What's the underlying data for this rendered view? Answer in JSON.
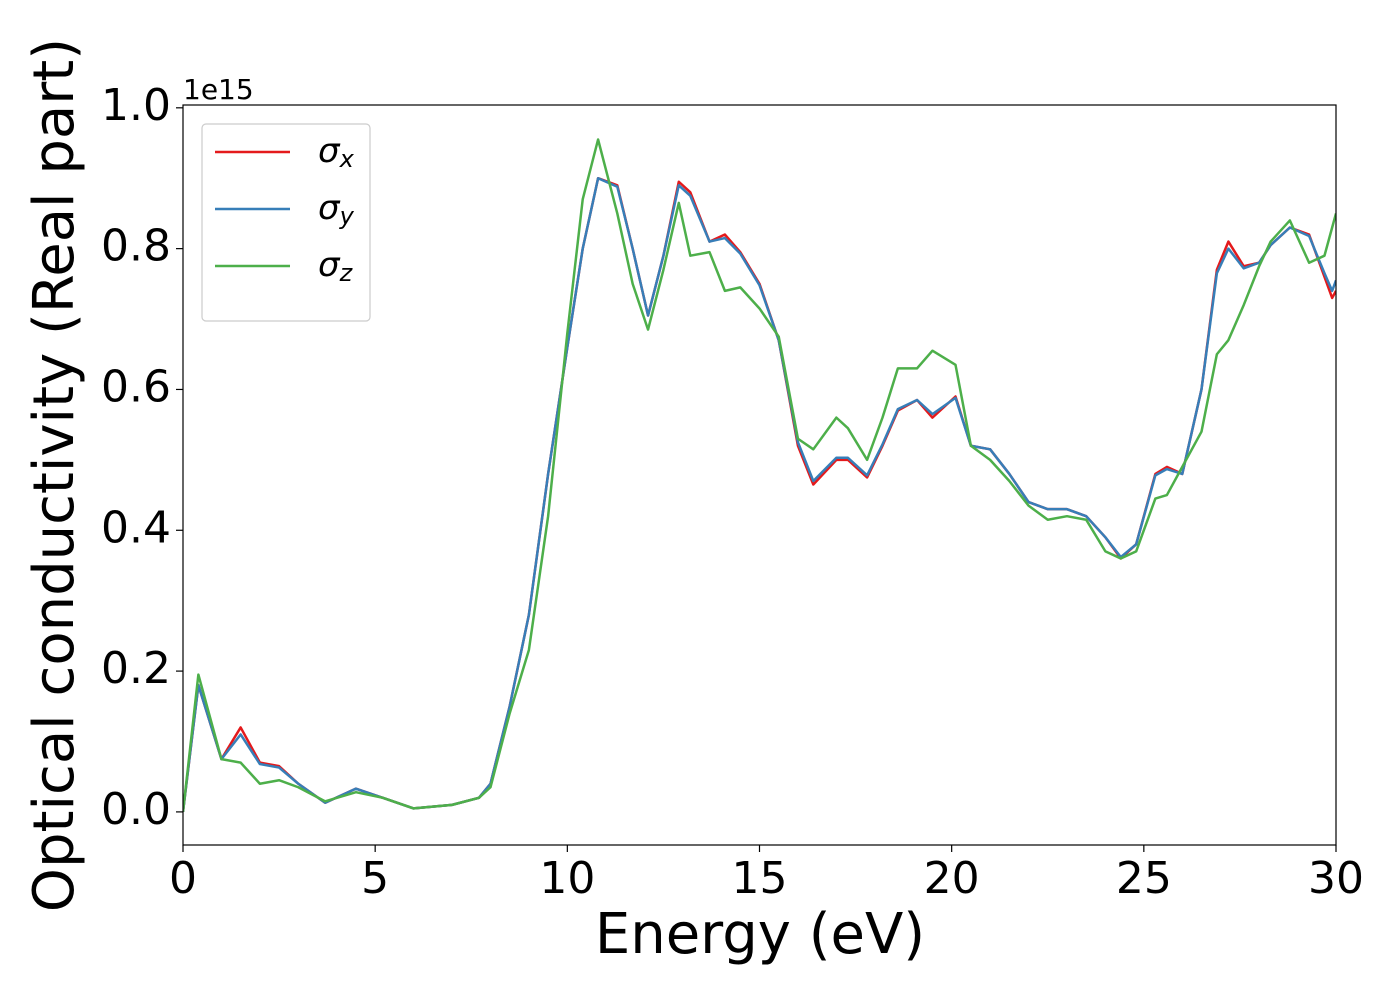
{
  "chart_data": {
    "type": "line",
    "xlabel": "Energy (eV)",
    "ylabel": "Optical conductivity (Real part)",
    "y_offset_label": "1e15",
    "x": [
      0,
      0.4,
      1.0,
      1.5,
      2.0,
      2.5,
      3.0,
      3.7,
      4.5,
      5.2,
      6.0,
      7.0,
      7.7,
      8.0,
      8.5,
      9.0,
      9.5,
      10.0,
      10.4,
      10.8,
      11.3,
      11.7,
      12.1,
      12.5,
      12.9,
      13.2,
      13.7,
      14.1,
      14.5,
      15.0,
      15.5,
      16.0,
      16.4,
      17.0,
      17.3,
      17.8,
      18.2,
      18.6,
      19.1,
      19.5,
      20.1,
      20.5,
      21.0,
      21.5,
      22.0,
      22.5,
      23.0,
      23.5,
      24.0,
      24.4,
      24.8,
      25.3,
      25.6,
      26.0,
      26.5,
      26.9,
      27.2,
      27.6,
      28.0,
      28.3,
      28.8,
      29.3,
      29.7,
      29.9,
      30
    ],
    "series": [
      {
        "name": "σx",
        "color": "#e41a1c",
        "values": [
          0,
          0.18,
          0.075,
          0.12,
          0.07,
          0.065,
          0.04,
          0.013,
          0.033,
          0.02,
          0.005,
          0.01,
          0.02,
          0.04,
          0.15,
          0.28,
          0.48,
          0.66,
          0.8,
          0.9,
          0.89,
          0.8,
          0.705,
          0.79,
          0.895,
          0.88,
          0.81,
          0.82,
          0.795,
          0.75,
          0.67,
          0.52,
          0.465,
          0.5,
          0.5,
          0.475,
          0.52,
          0.57,
          0.585,
          0.56,
          0.59,
          0.52,
          0.515,
          0.48,
          0.44,
          0.43,
          0.43,
          0.42,
          0.39,
          0.36,
          0.38,
          0.48,
          0.49,
          0.48,
          0.6,
          0.77,
          0.81,
          0.775,
          0.78,
          0.805,
          0.83,
          0.82,
          0.76,
          0.73,
          0.74
        ]
      },
      {
        "name": "σy",
        "color": "#377eb8",
        "values": [
          0,
          0.18,
          0.075,
          0.11,
          0.068,
          0.063,
          0.04,
          0.013,
          0.033,
          0.02,
          0.005,
          0.01,
          0.02,
          0.04,
          0.15,
          0.28,
          0.48,
          0.66,
          0.8,
          0.9,
          0.888,
          0.8,
          0.705,
          0.79,
          0.89,
          0.875,
          0.81,
          0.815,
          0.793,
          0.748,
          0.67,
          0.525,
          0.47,
          0.503,
          0.503,
          0.478,
          0.522,
          0.572,
          0.585,
          0.565,
          0.588,
          0.52,
          0.515,
          0.48,
          0.44,
          0.43,
          0.43,
          0.42,
          0.39,
          0.362,
          0.38,
          0.478,
          0.487,
          0.48,
          0.6,
          0.765,
          0.8,
          0.772,
          0.78,
          0.805,
          0.83,
          0.818,
          0.765,
          0.74,
          0.755
        ]
      },
      {
        "name": "σz",
        "color": "#4daf4a",
        "values": [
          0,
          0.195,
          0.075,
          0.07,
          0.04,
          0.045,
          0.035,
          0.015,
          0.028,
          0.02,
          0.005,
          0.01,
          0.02,
          0.035,
          0.14,
          0.23,
          0.42,
          0.68,
          0.87,
          0.955,
          0.85,
          0.75,
          0.685,
          0.77,
          0.865,
          0.79,
          0.795,
          0.74,
          0.745,
          0.715,
          0.675,
          0.53,
          0.515,
          0.56,
          0.545,
          0.5,
          0.56,
          0.63,
          0.63,
          0.655,
          0.635,
          0.52,
          0.5,
          0.47,
          0.435,
          0.415,
          0.42,
          0.415,
          0.37,
          0.36,
          0.37,
          0.445,
          0.45,
          0.49,
          0.54,
          0.65,
          0.67,
          0.72,
          0.775,
          0.81,
          0.84,
          0.78,
          0.79,
          0.83,
          0.85
        ]
      }
    ],
    "xlim": [
      0,
      30
    ],
    "xticks": [
      0,
      5,
      10,
      15,
      20,
      25,
      30
    ],
    "ylim": [
      -0.047,
      1.004
    ],
    "yticks": [
      {
        "value": 0,
        "label": "0.0"
      },
      0.2,
      0.4,
      0.6,
      0.8,
      {
        "value": 1,
        "label": "1.0"
      }
    ],
    "legend": "upper left",
    "grid": false
  }
}
